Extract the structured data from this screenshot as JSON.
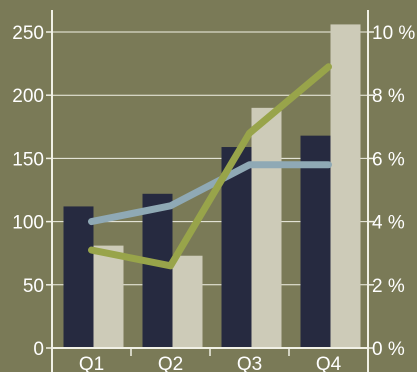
{
  "colors": {
    "background": "#7a7a57",
    "bar_dark": "#262a40",
    "bar_light": "#cdcbb8",
    "line_blue": "#8fa9b5",
    "line_green": "#98a44a",
    "grid": "#f1f1e6",
    "axis": "#f1f1e6",
    "text": "#ffffff"
  },
  "chart_data": {
    "type": "bar",
    "categories": [
      "Q1",
      "Q2",
      "Q3",
      "Q4"
    ],
    "series": [
      {
        "kind": "bar",
        "axis": "left",
        "values": [
          112,
          122,
          159,
          168
        ]
      },
      {
        "kind": "bar",
        "axis": "left",
        "values": [
          81,
          73,
          190,
          256
        ]
      },
      {
        "kind": "line",
        "axis": "right",
        "values": [
          4.0,
          4.5,
          5.8,
          5.8
        ]
      },
      {
        "kind": "line",
        "axis": "right",
        "values": [
          3.1,
          2.6,
          6.8,
          8.9
        ]
      }
    ],
    "y_left": {
      "min": 0,
      "max": 250,
      "ticks": [
        "0",
        "50",
        "100",
        "150",
        "200",
        "250"
      ]
    },
    "y_right": {
      "min": 0,
      "max": 10,
      "ticks": [
        "0 %",
        "2 %",
        "4 %",
        "6 %",
        "8 %",
        "10 %"
      ]
    },
    "grid": true,
    "legend": "none",
    "title": "",
    "xlabel": "",
    "ylabel": ""
  }
}
